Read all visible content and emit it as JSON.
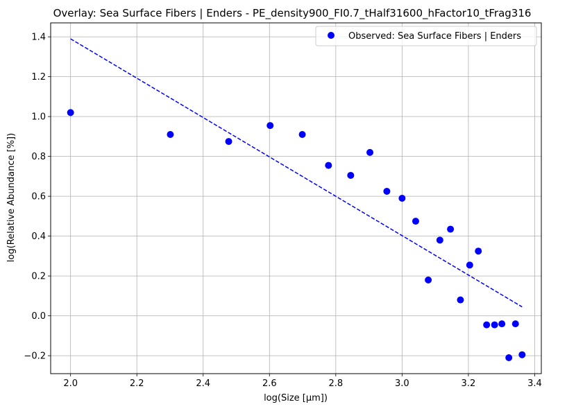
{
  "chart_data": {
    "type": "scatter",
    "title": "Overlay: Sea Surface Fibers | Enders - PE_density900_FI0.7_tHalf31600_hFactor10_tFrag316",
    "xlabel": "log(Size [μm])",
    "ylabel": "log(Relative Abundance [%])",
    "xlim": [
      1.94,
      3.42
    ],
    "ylim": [
      -0.29,
      1.47
    ],
    "grid": true,
    "legend_position": "top-right",
    "x_ticks": [
      2.0,
      2.2,
      2.4,
      2.6,
      2.8,
      3.0,
      3.2,
      3.4
    ],
    "x_tick_labels": [
      "2.0",
      "2.2",
      "2.4",
      "2.6",
      "2.8",
      "3.0",
      "3.2",
      "3.4"
    ],
    "y_ticks": [
      -0.2,
      0.0,
      0.2,
      0.4,
      0.6,
      0.8,
      1.0,
      1.2,
      1.4
    ],
    "y_tick_labels": [
      "−0.2",
      "0.0",
      "0.2",
      "0.4",
      "0.6",
      "0.8",
      "1.0",
      "1.2",
      "1.4"
    ],
    "series": [
      {
        "name": "Observed: Sea Surface Fibers | Enders",
        "kind": "scatter",
        "color": "#0000ff",
        "x": [
          2.0,
          2.301,
          2.477,
          2.602,
          2.699,
          2.778,
          2.845,
          2.903,
          2.954,
          3.0,
          3.041,
          3.079,
          3.114,
          3.146,
          3.176,
          3.204,
          3.23,
          3.255,
          3.279,
          3.301,
          3.322,
          3.342,
          3.362
        ],
        "y": [
          1.02,
          0.91,
          0.875,
          0.955,
          0.91,
          0.755,
          0.705,
          0.82,
          0.625,
          0.59,
          0.475,
          0.18,
          0.38,
          0.435,
          0.08,
          0.255,
          0.325,
          -0.045,
          -0.045,
          -0.04,
          -0.21,
          -0.04,
          -0.195
        ]
      },
      {
        "kind": "dashed-line",
        "color": "#0000ff",
        "x": [
          2.0,
          3.362
        ],
        "y": [
          1.39,
          0.045
        ]
      }
    ]
  }
}
